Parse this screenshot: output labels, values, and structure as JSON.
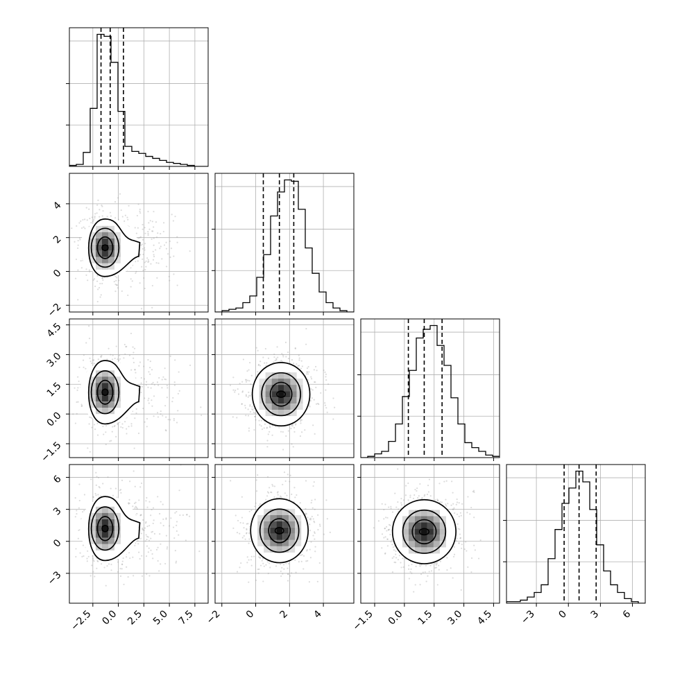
{
  "chart_data": {
    "type": "corner",
    "variables": [
      {
        "range": [
          -4.8,
          8.8
        ],
        "ticks": [
          -2.5,
          0.0,
          2.5,
          5.0,
          7.5
        ],
        "tick_labels": [
          "−2.5",
          "0.0",
          "2.5",
          "5.0",
          "7.5"
        ],
        "quantiles": [
          -1.7,
          -0.8,
          0.5
        ],
        "histogram": {
          "edges_start": -4.8,
          "bin_width": 0.68,
          "counts": [
            1,
            2,
            14,
            58,
            132,
            130,
            104,
            55,
            20,
            15,
            13,
            10,
            8,
            6,
            4,
            3,
            2,
            1,
            0,
            0
          ]
        }
      },
      {
        "range": [
          -2.4,
          5.8
        ],
        "ticks": [
          -2,
          0,
          2,
          4
        ],
        "tick_labels": [
          "−2",
          "0",
          "2",
          "4"
        ],
        "quantiles": [
          0.45,
          1.4,
          2.25
        ],
        "histogram": {
          "edges_start": -2.4,
          "bin_width": 0.41,
          "counts": [
            0,
            1,
            2,
            3,
            7,
            12,
            26,
            43,
            72,
            90,
            99,
            98,
            77,
            48,
            29,
            15,
            7,
            3,
            1,
            0
          ]
        }
      },
      {
        "range": [
          -2.2,
          4.8
        ],
        "ticks": [
          -1.5,
          0.0,
          1.5,
          3.0,
          4.5
        ],
        "tick_labels": [
          "−1.5",
          "0.0",
          "1.5",
          "3.0",
          "4.5"
        ],
        "quantiles": [
          0.2,
          1.0,
          1.9
        ],
        "histogram": {
          "edges_start": -2.2,
          "bin_width": 0.35,
          "counts": [
            0,
            1,
            3,
            5,
            13,
            27,
            49,
            70,
            96,
            103,
            106,
            90,
            74,
            48,
            27,
            12,
            8,
            5,
            2,
            1
          ]
        }
      },
      {
        "range": [
          -5.8,
          7.2
        ],
        "ticks": [
          -3,
          0,
          3,
          6
        ],
        "tick_labels": [
          "−3",
          "0",
          "3",
          "6"
        ],
        "quantiles": [
          -0.4,
          1.0,
          2.6
        ],
        "histogram": {
          "edges_start": -5.8,
          "bin_width": 0.65,
          "counts": [
            1,
            1,
            2,
            4,
            7,
            12,
            29,
            48,
            65,
            75,
            86,
            79,
            61,
            38,
            21,
            12,
            7,
            3,
            1,
            0
          ]
        }
      }
    ],
    "density_2d": {
      "shape": "2D histogram (gray squares) with 3 contour levels and light-gray scatter points",
      "centers": {
        "1-0": [
          -1.3,
          1.4
        ],
        "2-0": [
          -1.3,
          1.1
        ],
        "3-0": [
          -1.3,
          1.2
        ],
        "2-1": [
          1.5,
          1.0
        ],
        "3-1": [
          1.4,
          1.0
        ],
        "3-2": [
          1.0,
          0.9
        ]
      },
      "spreads": [
        1.0,
        0.85,
        0.8,
        1.5
      ]
    },
    "title": "",
    "xlabel": "",
    "ylabel": "",
    "grid": true,
    "contour_levels": 3
  }
}
